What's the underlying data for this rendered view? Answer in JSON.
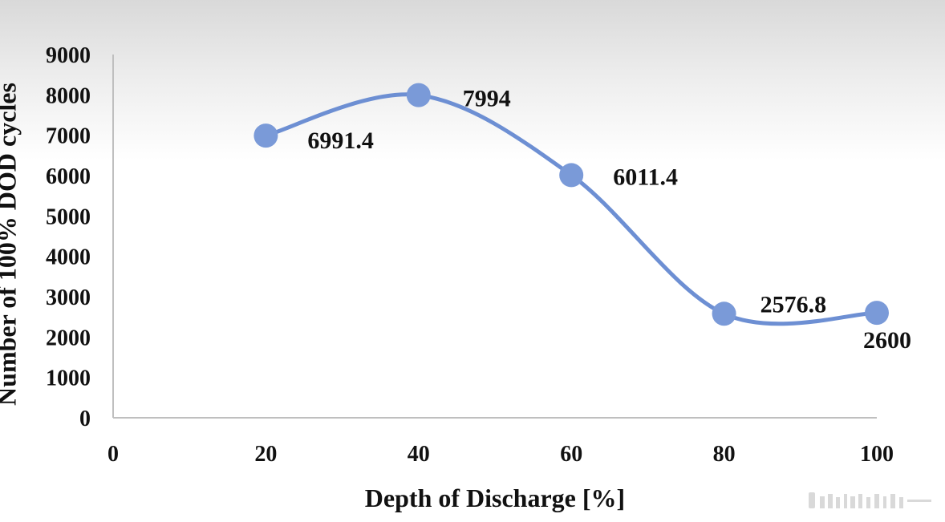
{
  "chart_data": {
    "type": "line",
    "smooth": true,
    "x": [
      20,
      40,
      60,
      80,
      100
    ],
    "values": [
      6991.4,
      7994,
      6011.4,
      2576.8,
      2600
    ],
    "data_labels": [
      "6991.4",
      "7994",
      "6011.4",
      "2576.8",
      "2600"
    ],
    "xlabel": "Depth of Discharge [%]",
    "ylabel": "Number of 100% DOD cycles",
    "xlim": [
      0,
      100
    ],
    "ylim": [
      0,
      9000
    ],
    "x_ticks": [
      "0",
      "20",
      "40",
      "60",
      "80",
      "100"
    ],
    "y_ticks": [
      "0",
      "1000",
      "2000",
      "3000",
      "4000",
      "5000",
      "6000",
      "7000",
      "8000",
      "9000"
    ],
    "grid": false,
    "legend": "none",
    "colors": {
      "line": "#6d8fd3",
      "marker": "#7a9ad8",
      "axis": "#bfbfbf",
      "text": "#111111"
    }
  }
}
